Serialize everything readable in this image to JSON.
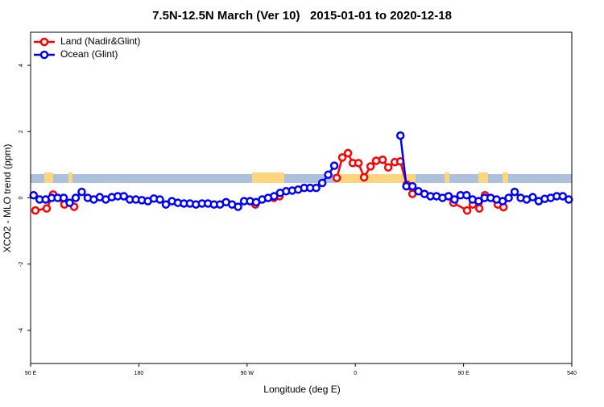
{
  "chart_data": {
    "type": "line",
    "title": "7.5N-12.5N March (Ver 10)   2015-01-01 to 2020-12-18",
    "xlabel": "Longitude (deg E)",
    "ylabel": "XCO2 - MLO trend (ppm)",
    "xlim": [
      90,
      540
    ],
    "ylim": [
      -5,
      5
    ],
    "xticks": [
      {
        "value": 90,
        "label": "90 E"
      },
      180,
      {
        "value": 270,
        "label": "90 W"
      },
      {
        "value": 360,
        "label": "0"
      },
      {
        "value": 450,
        "label": "90 E"
      },
      540
    ],
    "yticks": [
      -4,
      -2,
      0,
      2,
      4
    ],
    "legend": "upper left",
    "series": [
      {
        "name": "Land (Nadir&Glint)",
        "color": "#ff0000",
        "x": [
          94,
          103.4,
          108.7,
          118.1,
          126.2,
          200,
          276.9,
          292.3,
          297,
          320,
          344.6,
          349.2,
          353.9,
          357.9,
          362.6,
          367.3,
          372.7,
          377.3,
          382.7,
          387.4,
          392.8,
          397.4,
          402.8,
          407.5,
          420,
          437.6,
          441.6,
          453,
          457.7,
          463.1,
          467.8,
          478.5,
          483.2
        ],
        "values": [
          -0.38,
          -0.32,
          0.1,
          -0.2,
          -0.27,
          null,
          -0.2,
          0.0,
          0.05,
          null,
          0.6,
          1.22,
          1.35,
          1.05,
          1.05,
          0.62,
          0.95,
          1.12,
          1.15,
          0.92,
          1.08,
          1.1,
          0.4,
          0.12,
          null,
          0.05,
          -0.15,
          -0.38,
          -0.2,
          -0.32,
          0.08,
          -0.2,
          -0.28
        ]
      },
      {
        "name": "Ocean (Glint)",
        "color": "#0000ff",
        "x": [
          92.5,
          97.5,
          102.5,
          107.5,
          112.5,
          117.5,
          122.5,
          127.5,
          132.5,
          137.5,
          142.5,
          147.5,
          152.5,
          157.5,
          162.5,
          167.5,
          172.5,
          177.5,
          182.5,
          187.5,
          192.5,
          197.5,
          202.5,
          207.5,
          212.5,
          217.5,
          222.5,
          227.5,
          232.5,
          237.5,
          242.5,
          247.5,
          252.5,
          257.5,
          262.5,
          267.5,
          272.5,
          277.5,
          282.5,
          287.5,
          292.5,
          297.5,
          302.5,
          307.5,
          312.5,
          317.5,
          322.5,
          327.5,
          332.5,
          337.5,
          342.5,
          370,
          397.5,
          402.5,
          407.5,
          412.5,
          417.5,
          422.5,
          427.5,
          432.5,
          437.5,
          442.5,
          447.5,
          452.5,
          457.5,
          462.5,
          467.5,
          472.5,
          477.5,
          482.5,
          487.5,
          492.5,
          497.5,
          502.5,
          507.5,
          512.5,
          517.5,
          522.5,
          527.5,
          532.5,
          537.5
        ],
        "values": [
          0.08,
          -0.05,
          -0.05,
          0.0,
          0.0,
          0.0,
          -0.15,
          0.0,
          0.18,
          0.0,
          -0.05,
          0.02,
          -0.05,
          0.02,
          0.05,
          0.05,
          -0.05,
          -0.05,
          -0.07,
          -0.1,
          -0.02,
          -0.05,
          -0.2,
          -0.1,
          -0.15,
          -0.17,
          -0.17,
          -0.2,
          -0.17,
          -0.17,
          -0.2,
          -0.2,
          -0.13,
          -0.2,
          -0.27,
          -0.1,
          -0.1,
          -0.13,
          -0.05,
          0.0,
          0.05,
          0.15,
          0.2,
          0.22,
          0.25,
          0.3,
          0.3,
          0.3,
          0.45,
          0.7,
          0.97,
          null,
          1.88,
          0.35,
          0.35,
          0.2,
          0.12,
          0.05,
          0.05,
          0.0,
          0.05,
          -0.05,
          0.08,
          0.08,
          -0.05,
          -0.1,
          0.0,
          0.0,
          -0.05,
          -0.1,
          0.0,
          0.18,
          0.0,
          -0.05,
          0.02,
          -0.1,
          -0.03,
          0.0,
          0.05,
          0.05,
          -0.05
        ]
      }
    ]
  }
}
